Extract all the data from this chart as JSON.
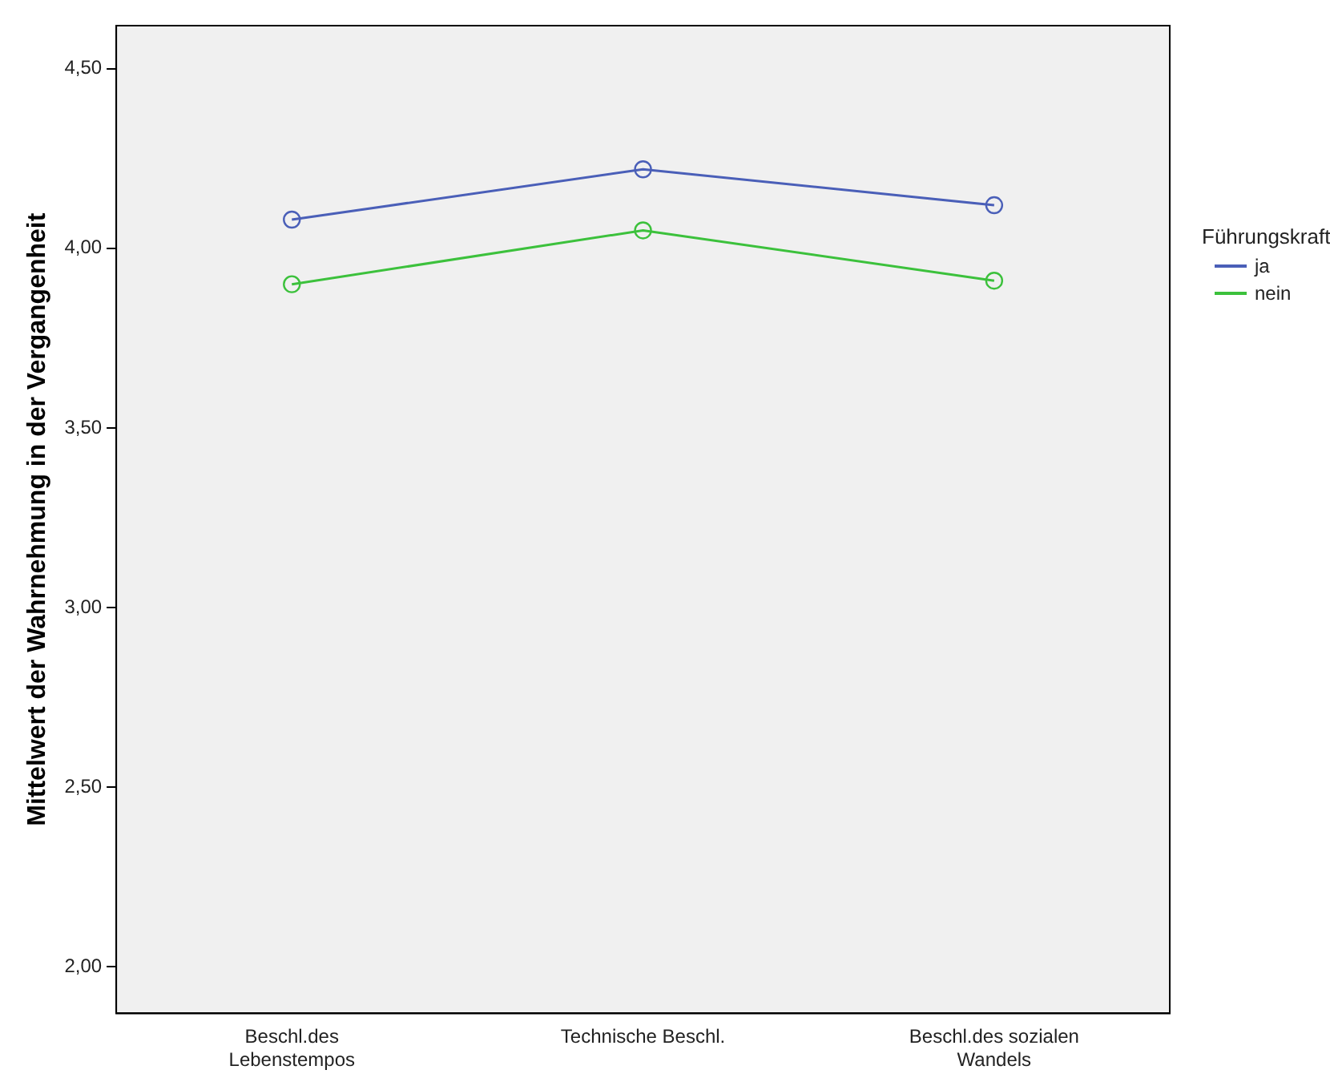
{
  "chart_data": {
    "type": "line",
    "ylabel": "Mittelwert der Wahrnehmung in der Vergangenheit",
    "legend_title": "Führungskraft",
    "legend": "right",
    "grid": false,
    "marker": "circle",
    "line_style": "solid",
    "categories": [
      "Beschl.des Lebenstempos",
      "Technische Beschl.",
      "Beschl.des sozialen Wandels"
    ],
    "series": [
      {
        "name": "ja",
        "color": "#4a5fb8",
        "values": [
          4.08,
          4.22,
          4.12
        ]
      },
      {
        "name": "nein",
        "color": "#3cc13c",
        "values": [
          3.9,
          4.05,
          3.91
        ]
      }
    ],
    "ylim": [
      1.87,
      4.62
    ],
    "yticks": [
      {
        "value": 2,
        "label": "2,00"
      },
      {
        "value": 2.5,
        "label": "2,50"
      },
      {
        "value": 3,
        "label": "3,00"
      },
      {
        "value": 3.5,
        "label": "3,50"
      },
      {
        "value": 4,
        "label": "4,00"
      },
      {
        "value": 4.5,
        "label": "4,50"
      }
    ]
  }
}
